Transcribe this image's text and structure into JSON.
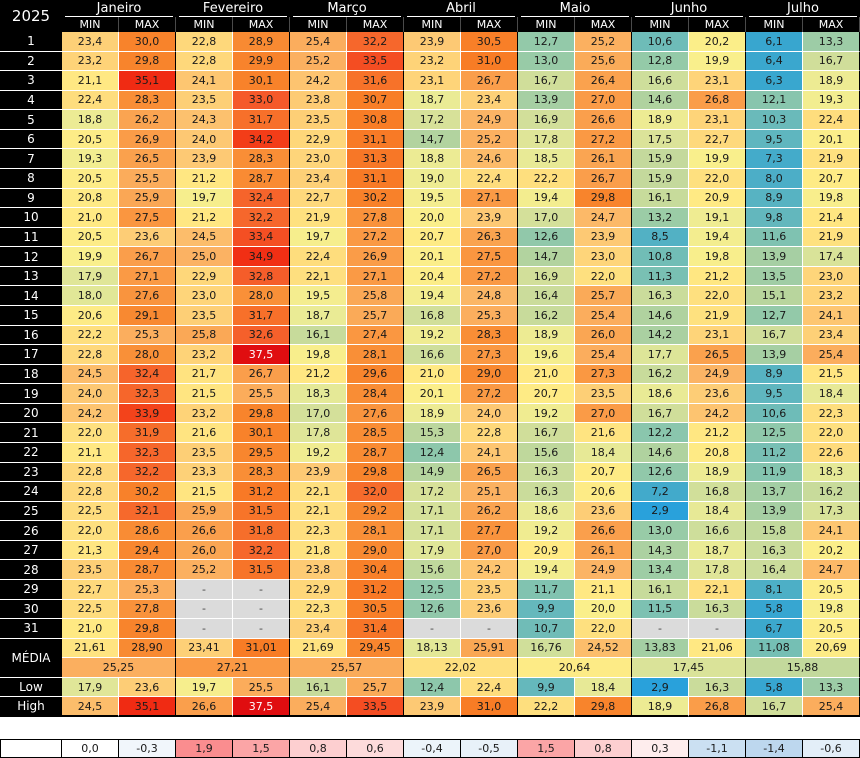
{
  "colors": {
    "header_bg": "#000000",
    "header_text": "#FFFFFF",
    "cell_text": "#1A1A1A",
    "cell_border": "#FFFFFF",
    "month_separator": "#000000",
    "header_separator": "#4A4A4A",
    "missing_bg": "#DBDBDB",
    "missing_text": "#404040",
    "white_text_min_value": 36.5,
    "scale_stops": [
      {
        "v": 2.9,
        "c": "#29A1DB"
      },
      {
        "v": 6.5,
        "c": "#3AA7CE"
      },
      {
        "v": 9.0,
        "c": "#58B3C2"
      },
      {
        "v": 11.0,
        "c": "#74BEB5"
      },
      {
        "v": 13.0,
        "c": "#98CBA7"
      },
      {
        "v": 15.0,
        "c": "#B6D49D"
      },
      {
        "v": 17.0,
        "c": "#D4E09A"
      },
      {
        "v": 18.5,
        "c": "#E8EA96"
      },
      {
        "v": 20.0,
        "c": "#FAEF8B"
      },
      {
        "v": 21.0,
        "c": "#FFE983"
      },
      {
        "v": 22.5,
        "c": "#FEDC7D"
      },
      {
        "v": 24.0,
        "c": "#FDC873"
      },
      {
        "v": 25.0,
        "c": "#FBB263"
      },
      {
        "v": 26.0,
        "c": "#FAA653"
      },
      {
        "v": 27.0,
        "c": "#FA9B47"
      },
      {
        "v": 28.0,
        "c": "#F99038"
      },
      {
        "v": 29.5,
        "c": "#F8862E"
      },
      {
        "v": 31.0,
        "c": "#F87C25"
      },
      {
        "v": 32.0,
        "c": "#F66B2C"
      },
      {
        "v": 33.0,
        "c": "#F5592A"
      },
      {
        "v": 34.0,
        "c": "#F34119"
      },
      {
        "v": 35.0,
        "c": "#F12D13"
      },
      {
        "v": 36.0,
        "c": "#EA1B11"
      },
      {
        "v": 37.5,
        "c": "#E00D10"
      }
    ],
    "anomaly_positive": "#F8696B",
    "anomaly_negative": "#5B9BD5",
    "anomaly_positive_full_at": 2.5,
    "anomaly_negative_full_at": 3.5
  },
  "chart_data": {
    "type": "heatmap",
    "title": "2025",
    "months": [
      "Janeiro",
      "Fevereiro",
      "Março",
      "Abril",
      "Maio",
      "Junho",
      "Julho"
    ],
    "subcolumns": [
      "MIN",
      "MAX"
    ],
    "missing_marker": "-",
    "day_rows": [
      {
        "day": "1",
        "values": [
          "23,4",
          "30,0",
          "22,8",
          "28,9",
          "25,4",
          "32,2",
          "23,9",
          "30,5",
          "12,7",
          "25,2",
          "10,6",
          "20,2",
          "6,1",
          "13,3"
        ]
      },
      {
        "day": "2",
        "values": [
          "23,2",
          "29,8",
          "22,8",
          "29,9",
          "25,2",
          "33,5",
          "23,2",
          "31,0",
          "13,0",
          "25,6",
          "12,8",
          "19,9",
          "6,4",
          "16,7"
        ]
      },
      {
        "day": "3",
        "values": [
          "21,1",
          "35,1",
          "24,1",
          "30,1",
          "24,2",
          "31,6",
          "23,1",
          "26,7",
          "16,7",
          "26,4",
          "16,6",
          "23,1",
          "6,3",
          "18,9"
        ]
      },
      {
        "day": "4",
        "values": [
          "22,4",
          "28,3",
          "23,5",
          "33,0",
          "23,8",
          "30,7",
          "18,7",
          "23,4",
          "13,9",
          "27,0",
          "14,6",
          "26,8",
          "12,1",
          "19,3"
        ]
      },
      {
        "day": "5",
        "values": [
          "18,8",
          "26,2",
          "24,3",
          "31,7",
          "23,5",
          "30,8",
          "17,2",
          "24,9",
          "16,9",
          "26,6",
          "18,9",
          "23,1",
          "10,3",
          "22,4"
        ]
      },
      {
        "day": "6",
        "values": [
          "20,5",
          "26,9",
          "24,0",
          "34,2",
          "22,9",
          "31,1",
          "14,7",
          "25,2",
          "17,8",
          "27,2",
          "17,5",
          "22,7",
          "9,5",
          "20,1"
        ]
      },
      {
        "day": "7",
        "values": [
          "19,3",
          "26,5",
          "23,9",
          "28,3",
          "23,0",
          "31,3",
          "18,8",
          "24,6",
          "18,5",
          "26,1",
          "15,9",
          "19,9",
          "7,3",
          "21,9"
        ]
      },
      {
        "day": "8",
        "values": [
          "20,5",
          "25,5",
          "21,2",
          "28,7",
          "23,4",
          "31,1",
          "19,0",
          "22,4",
          "22,2",
          "26,7",
          "15,9",
          "22,0",
          "8,0",
          "20,7"
        ]
      },
      {
        "day": "9",
        "values": [
          "20,8",
          "25,9",
          "19,7",
          "32,4",
          "22,7",
          "30,2",
          "19,5",
          "27,1",
          "19,4",
          "29,8",
          "16,1",
          "20,9",
          "8,9",
          "19,8"
        ]
      },
      {
        "day": "10",
        "values": [
          "21,0",
          "27,5",
          "21,2",
          "32,2",
          "21,9",
          "27,8",
          "20,0",
          "23,9",
          "17,0",
          "24,7",
          "13,2",
          "19,1",
          "9,8",
          "21,4"
        ]
      },
      {
        "day": "11",
        "values": [
          "20,5",
          "23,6",
          "24,5",
          "33,4",
          "19,7",
          "27,2",
          "20,7",
          "26,3",
          "12,6",
          "23,9",
          "8,5",
          "19,4",
          "11,6",
          "21,9"
        ]
      },
      {
        "day": "12",
        "values": [
          "19,9",
          "26,7",
          "25,0",
          "34,9",
          "22,4",
          "26,9",
          "20,1",
          "27,5",
          "14,7",
          "23,0",
          "10,8",
          "19,8",
          "13,9",
          "17,4"
        ]
      },
      {
        "day": "13",
        "values": [
          "17,9",
          "27,1",
          "22,9",
          "32,8",
          "22,1",
          "27,1",
          "20,4",
          "27,2",
          "16,9",
          "22,0",
          "11,3",
          "21,2",
          "13,5",
          "23,0"
        ]
      },
      {
        "day": "14",
        "values": [
          "18,0",
          "27,6",
          "23,0",
          "28,0",
          "19,5",
          "25,8",
          "19,4",
          "24,8",
          "16,4",
          "25,7",
          "16,3",
          "22,0",
          "15,1",
          "23,2"
        ]
      },
      {
        "day": "15",
        "values": [
          "20,6",
          "29,1",
          "23,5",
          "31,7",
          "18,7",
          "25,7",
          "16,8",
          "25,3",
          "16,2",
          "25,4",
          "14,6",
          "21,9",
          "12,7",
          "24,1"
        ]
      },
      {
        "day": "16",
        "values": [
          "22,2",
          "25,3",
          "25,8",
          "32,6",
          "16,1",
          "27,4",
          "19,2",
          "28,3",
          "18,9",
          "26,0",
          "14,2",
          "23,1",
          "16,7",
          "23,4"
        ]
      },
      {
        "day": "17",
        "values": [
          "22,8",
          "28,0",
          "23,2",
          "37,5",
          "19,8",
          "28,1",
          "16,6",
          "27,3",
          "19,6",
          "25,4",
          "17,7",
          "26,5",
          "13,9",
          "25,4"
        ]
      },
      {
        "day": "18",
        "values": [
          "24,5",
          "32,4",
          "21,7",
          "26,7",
          "21,2",
          "29,6",
          "21,0",
          "29,0",
          "21,0",
          "27,3",
          "16,2",
          "24,9",
          "8,9",
          "21,5"
        ]
      },
      {
        "day": "19",
        "values": [
          "24,0",
          "32,3",
          "21,5",
          "25,5",
          "18,3",
          "28,4",
          "20,1",
          "27,2",
          "20,7",
          "23,5",
          "18,6",
          "23,6",
          "9,5",
          "18,4"
        ]
      },
      {
        "day": "20",
        "values": [
          "24,2",
          "33,9",
          "23,2",
          "29,8",
          "17,0",
          "27,6",
          "18,9",
          "24,0",
          "19,2",
          "27,0",
          "16,7",
          "24,2",
          "10,6",
          "22,3"
        ]
      },
      {
        "day": "21",
        "values": [
          "22,0",
          "31,9",
          "21,6",
          "30,1",
          "17,8",
          "28,5",
          "15,3",
          "22,8",
          "16,7",
          "21,6",
          "12,2",
          "21,2",
          "12,5",
          "22,0"
        ]
      },
      {
        "day": "22",
        "values": [
          "21,1",
          "32,3",
          "23,5",
          "29,5",
          "19,2",
          "28,7",
          "12,4",
          "24,1",
          "15,6",
          "18,4",
          "14,6",
          "20,8",
          "11,2",
          "22,6"
        ]
      },
      {
        "day": "23",
        "values": [
          "22,8",
          "32,2",
          "23,3",
          "28,3",
          "23,9",
          "29,8",
          "14,9",
          "26,5",
          "16,3",
          "20,7",
          "12,6",
          "18,9",
          "11,9",
          "18,3"
        ]
      },
      {
        "day": "24",
        "values": [
          "22,8",
          "30,2",
          "21,5",
          "31,2",
          "22,1",
          "32,0",
          "17,2",
          "25,1",
          "16,3",
          "20,6",
          "7,2",
          "16,8",
          "13,7",
          "16,2"
        ]
      },
      {
        "day": "25",
        "values": [
          "22,5",
          "32,1",
          "25,9",
          "31,5",
          "22,1",
          "29,2",
          "17,1",
          "26,2",
          "18,6",
          "23,6",
          "2,9",
          "18,4",
          "13,9",
          "17,3"
        ]
      },
      {
        "day": "26",
        "values": [
          "22,0",
          "28,6",
          "26,6",
          "31,8",
          "22,3",
          "28,1",
          "17,1",
          "27,7",
          "19,2",
          "26,6",
          "13,0",
          "16,6",
          "15,8",
          "24,1"
        ]
      },
      {
        "day": "27",
        "values": [
          "21,3",
          "29,4",
          "26,0",
          "32,2",
          "21,8",
          "29,0",
          "17,9",
          "27,0",
          "20,9",
          "26,1",
          "14,3",
          "18,7",
          "16,3",
          "20,2"
        ]
      },
      {
        "day": "28",
        "values": [
          "23,5",
          "28,7",
          "25,2",
          "31,5",
          "23,8",
          "30,4",
          "15,6",
          "24,2",
          "19,4",
          "24,9",
          "13,4",
          "17,8",
          "16,4",
          "24,7"
        ]
      },
      {
        "day": "29",
        "values": [
          "22,7",
          "25,3",
          "-",
          "-",
          "22,9",
          "31,2",
          "12,5",
          "23,5",
          "11,7",
          "21,1",
          "16,1",
          "22,1",
          "8,1",
          "20,5"
        ]
      },
      {
        "day": "30",
        "values": [
          "22,5",
          "27,8",
          "-",
          "-",
          "22,3",
          "30,5",
          "12,6",
          "23,6",
          "9,9",
          "20,0",
          "11,5",
          "16,3",
          "5,8",
          "19,8"
        ]
      },
      {
        "day": "31",
        "values": [
          "21,0",
          "29,8",
          "-",
          "-",
          "23,4",
          "31,4",
          "-",
          "-",
          "10,7",
          "22,0",
          "-",
          "-",
          "6,7",
          "20,5"
        ]
      }
    ],
    "media_label": "MÉDIA",
    "media_values": [
      "21,61",
      "28,90",
      "23,41",
      "31,01",
      "21,69",
      "29,45",
      "18,13",
      "25,91",
      "16,76",
      "24,52",
      "13,83",
      "21,06",
      "11,08",
      "20,69"
    ],
    "month_averages": [
      "25,25",
      "27,21",
      "25,57",
      "22,02",
      "20,64",
      "17,45",
      "15,88"
    ],
    "low_label": "Low",
    "low_values": [
      "17,9",
      "23,6",
      "19,7",
      "25,5",
      "16,1",
      "25,7",
      "12,4",
      "22,4",
      "9,9",
      "18,4",
      "2,9",
      "16,3",
      "5,8",
      "13,3"
    ],
    "high_label": "High",
    "high_values": [
      "24,5",
      "35,1",
      "26,6",
      "37,5",
      "25,4",
      "33,5",
      "23,9",
      "31,0",
      "22,2",
      "29,8",
      "18,9",
      "26,8",
      "16,7",
      "25,4"
    ],
    "anomaly_row": [
      "0,0",
      "-0,3",
      "1,9",
      "1,5",
      "0,8",
      "0,6",
      "-0,4",
      "-0,5",
      "1,5",
      "0,8",
      "0,3",
      "-1,1",
      "-1,4",
      "-0,6"
    ]
  }
}
